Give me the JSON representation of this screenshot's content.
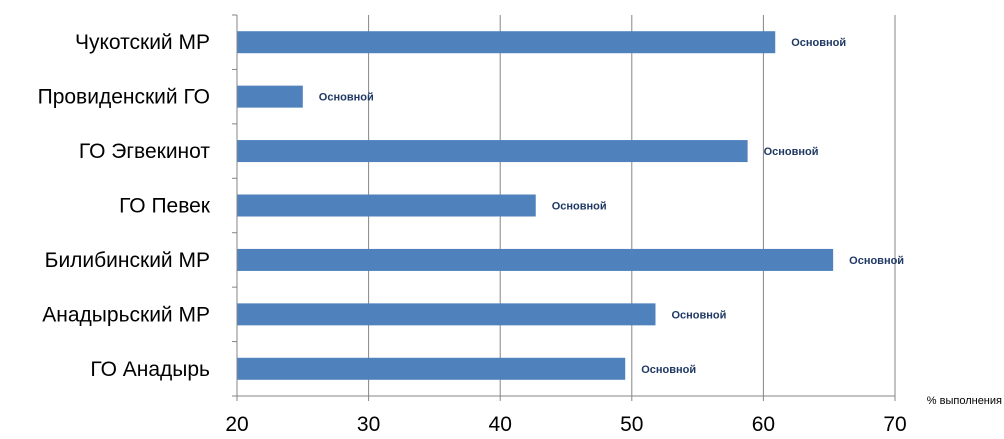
{
  "chart_data": {
    "type": "bar",
    "orientation": "horizontal",
    "categories": [
      "ГО Анадырь",
      "Анадырьский МР",
      "Билибинский МР",
      "ГО Певек",
      "ГО Эгвекинот",
      "Провиденский ГО",
      "Чукотский МР"
    ],
    "values": [
      49.5,
      51.8,
      65.3,
      42.7,
      58.8,
      25.0,
      60.9
    ],
    "data_labels": [
      "Основной",
      "Основной",
      "Основной",
      "Основной",
      "Основной",
      "Основной",
      "Основной"
    ],
    "xlabel": "% выполнения",
    "xlim": [
      20,
      70
    ],
    "xticks": [
      20,
      30,
      40,
      50,
      60,
      70
    ],
    "grid": "vertical",
    "bar_color": "#4f81bd",
    "label_color": "#1f3864"
  }
}
